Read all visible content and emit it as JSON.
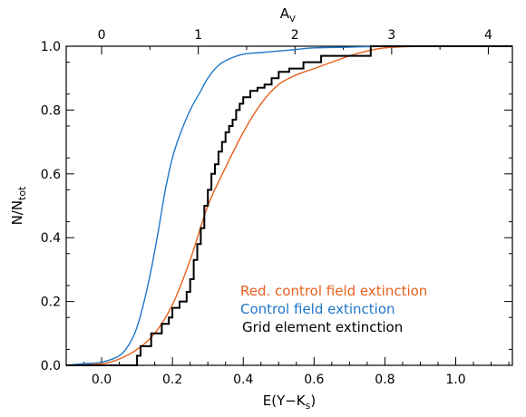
{
  "chart_data": {
    "type": "line",
    "title": "",
    "xlabel": "E(Y−K",
    "xlabel_sub": "s",
    "xlabel_close": ")",
    "ylabel": "N/N",
    "ylabel_sub": "tot",
    "top_axis_label": "A",
    "top_axis_label_sub": "V",
    "xlim": [
      -0.1,
      1.16
    ],
    "ylim": [
      0.0,
      1.0
    ],
    "x_ticks": [
      0.0,
      0.2,
      0.4,
      0.6,
      0.8,
      1.0
    ],
    "x_tick_labels": [
      "0.0",
      "0.2",
      "0.4",
      "0.6",
      "0.8",
      "1.0"
    ],
    "y_ticks": [
      0.0,
      0.2,
      0.4,
      0.6,
      0.8,
      1.0
    ],
    "y_tick_labels": [
      "0.0",
      "0.2",
      "0.4",
      "0.6",
      "0.8",
      "1.0"
    ],
    "top_ticks_x": [
      0.0,
      0.273,
      0.546,
      0.819,
      1.092
    ],
    "top_tick_labels": [
      "0",
      "1",
      "2",
      "3",
      "4"
    ],
    "legend_position": "lower-right",
    "series": [
      {
        "name": "Red. control field extinction",
        "color": "#e8601c",
        "style": "smooth",
        "x": [
          -0.1,
          0.0,
          0.05,
          0.1,
          0.15,
          0.2,
          0.25,
          0.3,
          0.35,
          0.4,
          0.45,
          0.5,
          0.55,
          0.6,
          0.65,
          0.7,
          0.75,
          0.8,
          0.9,
          1.0,
          1.16
        ],
        "y": [
          0.0,
          0.005,
          0.02,
          0.05,
          0.1,
          0.19,
          0.33,
          0.5,
          0.62,
          0.73,
          0.82,
          0.88,
          0.91,
          0.93,
          0.95,
          0.97,
          0.985,
          0.995,
          1.0,
          1.0,
          1.0
        ]
      },
      {
        "name": "Control field extinction",
        "color": "#1f77c9",
        "style": "smooth",
        "x": [
          -0.1,
          -0.05,
          0.0,
          0.05,
          0.08,
          0.1,
          0.12,
          0.14,
          0.16,
          0.18,
          0.2,
          0.22,
          0.25,
          0.28,
          0.3,
          0.33,
          0.36,
          0.4,
          0.45,
          0.5,
          0.55,
          0.6,
          0.7,
          0.8,
          0.9,
          1.0,
          1.16
        ],
        "y": [
          0.0,
          0.005,
          0.01,
          0.03,
          0.07,
          0.12,
          0.2,
          0.3,
          0.42,
          0.55,
          0.65,
          0.72,
          0.8,
          0.86,
          0.9,
          0.94,
          0.96,
          0.975,
          0.98,
          0.985,
          0.99,
          0.995,
          0.997,
          1.0,
          1.0,
          1.0,
          1.0
        ]
      },
      {
        "name": "Grid element extinction",
        "color": "#000000",
        "style": "step",
        "x": [
          -0.1,
          0.1,
          0.11,
          0.14,
          0.17,
          0.19,
          0.2,
          0.22,
          0.24,
          0.25,
          0.26,
          0.27,
          0.28,
          0.29,
          0.3,
          0.31,
          0.32,
          0.33,
          0.34,
          0.35,
          0.36,
          0.37,
          0.38,
          0.39,
          0.4,
          0.42,
          0.44,
          0.46,
          0.48,
          0.5,
          0.53,
          0.57,
          0.62,
          0.68,
          0.72,
          0.76,
          0.8,
          1.16
        ],
        "y": [
          0.0,
          0.03,
          0.06,
          0.1,
          0.13,
          0.15,
          0.18,
          0.2,
          0.23,
          0.27,
          0.33,
          0.38,
          0.43,
          0.5,
          0.55,
          0.6,
          0.63,
          0.67,
          0.7,
          0.73,
          0.75,
          0.77,
          0.8,
          0.82,
          0.84,
          0.86,
          0.87,
          0.88,
          0.9,
          0.92,
          0.93,
          0.95,
          0.97,
          0.97,
          0.97,
          1.0,
          1.0,
          1.0
        ]
      }
    ]
  },
  "legend": {
    "items": [
      {
        "label": "Red. control field extinction",
        "color": "#e8601c"
      },
      {
        "label": "Control field extinction",
        "color": "#1f77c9"
      },
      {
        "label": "Grid element extinction",
        "color": "#000000"
      }
    ]
  }
}
